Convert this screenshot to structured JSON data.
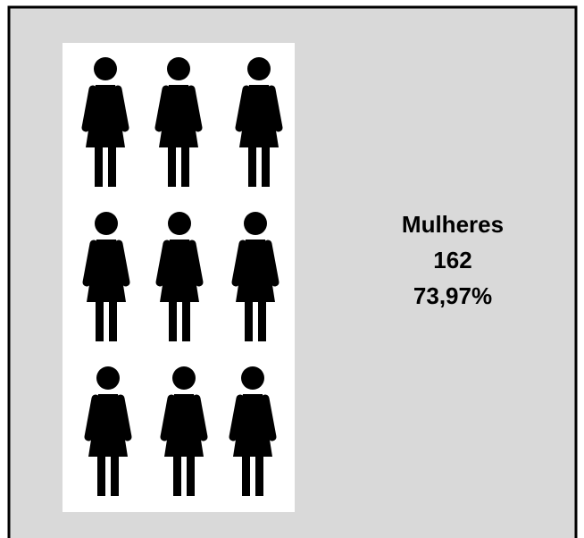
{
  "label": "Mulheres",
  "count": 162,
  "percent": "73,97%"
}
